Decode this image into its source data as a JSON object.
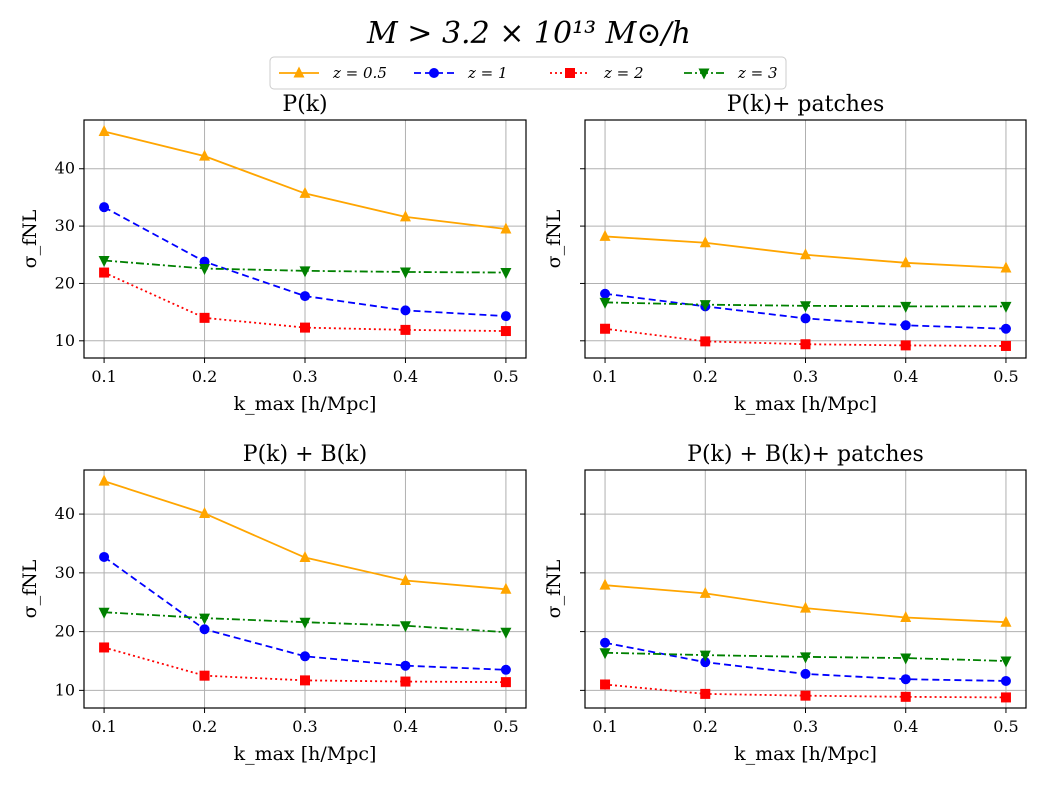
{
  "figure": {
    "title": "M > 3.2 × 10¹³ M⊙/h",
    "legend": [
      {
        "label": "z = 0.5",
        "color": "#ffa500",
        "marker": "triangle-up",
        "dash": "solid"
      },
      {
        "label": "z = 1",
        "color": "#0000ff",
        "marker": "circle",
        "dash": "dashed"
      },
      {
        "label": "z = 2",
        "color": "#ff0000",
        "marker": "square",
        "dash": "dotted"
      },
      {
        "label": "z = 3",
        "color": "#008000",
        "marker": "triangle-down",
        "dash": "dashdot"
      }
    ]
  },
  "chart_data": [
    {
      "type": "line",
      "title": "P(k)",
      "xlabel": "k_max [h/Mpc]",
      "ylabel": "σ_fNL",
      "x": [
        0.1,
        0.2,
        0.3,
        0.4,
        0.5
      ],
      "xticks": [
        "0.1",
        "0.2",
        "0.3",
        "0.4",
        "0.5"
      ],
      "yticks": [
        "10",
        "20",
        "30",
        "40"
      ],
      "ytick_values": [
        10,
        20,
        30,
        40
      ],
      "ytick_labels_visible": true,
      "ylim": [
        7,
        48.5
      ],
      "xlim": [
        0.08,
        0.52
      ],
      "grid": true,
      "series": [
        {
          "name": "z = 0.5",
          "values": [
            46.5,
            42.2,
            35.7,
            31.6,
            29.5
          ]
        },
        {
          "name": "z = 1",
          "values": [
            33.3,
            23.8,
            17.8,
            15.3,
            14.3
          ]
        },
        {
          "name": "z = 2",
          "values": [
            21.9,
            14.0,
            12.3,
            11.9,
            11.7
          ]
        },
        {
          "name": "z = 3",
          "values": [
            24.0,
            22.6,
            22.2,
            22.0,
            21.9
          ]
        }
      ]
    },
    {
      "type": "line",
      "title": "P(k)+ patches",
      "xlabel": "k_max [h/Mpc]",
      "ylabel": "σ_fNL",
      "x": [
        0.1,
        0.2,
        0.3,
        0.4,
        0.5
      ],
      "xticks": [
        "0.1",
        "0.2",
        "0.3",
        "0.4",
        "0.5"
      ],
      "yticks": [
        "10",
        "20",
        "30",
        "40"
      ],
      "ytick_values": [
        10,
        20,
        30,
        40
      ],
      "ytick_labels_visible": false,
      "ylim": [
        7,
        48.5
      ],
      "xlim": [
        0.08,
        0.52
      ],
      "grid": true,
      "series": [
        {
          "name": "z = 0.5",
          "values": [
            28.2,
            27.1,
            25.0,
            23.6,
            22.7
          ]
        },
        {
          "name": "z = 1",
          "values": [
            18.2,
            16.0,
            13.9,
            12.7,
            12.1
          ]
        },
        {
          "name": "z = 2",
          "values": [
            12.1,
            9.9,
            9.4,
            9.2,
            9.1
          ]
        },
        {
          "name": "z = 3",
          "values": [
            16.7,
            16.3,
            16.1,
            16.0,
            16.0
          ]
        }
      ]
    },
    {
      "type": "line",
      "title": "P(k) + B(k)",
      "xlabel": "k_max [h/Mpc]",
      "ylabel": "σ_fNL",
      "x": [
        0.1,
        0.2,
        0.3,
        0.4,
        0.5
      ],
      "xticks": [
        "0.1",
        "0.2",
        "0.3",
        "0.4",
        "0.5"
      ],
      "yticks": [
        "10",
        "20",
        "30",
        "40"
      ],
      "ytick_values": [
        10,
        20,
        30,
        40
      ],
      "ytick_labels_visible": true,
      "ylim": [
        7,
        47.5
      ],
      "xlim": [
        0.08,
        0.52
      ],
      "grid": true,
      "series": [
        {
          "name": "z = 0.5",
          "values": [
            45.6,
            40.1,
            32.6,
            28.7,
            27.2
          ]
        },
        {
          "name": "z = 1",
          "values": [
            32.7,
            20.4,
            15.8,
            14.2,
            13.5
          ]
        },
        {
          "name": "z = 2",
          "values": [
            17.3,
            12.5,
            11.7,
            11.5,
            11.4
          ]
        },
        {
          "name": "z = 3",
          "values": [
            23.3,
            22.3,
            21.6,
            21.0,
            19.9
          ]
        }
      ]
    },
    {
      "type": "line",
      "title": "P(k) + B(k)+ patches",
      "xlabel": "k_max [h/Mpc]",
      "ylabel": "σ_fNL",
      "x": [
        0.1,
        0.2,
        0.3,
        0.4,
        0.5
      ],
      "xticks": [
        "0.1",
        "0.2",
        "0.3",
        "0.4",
        "0.5"
      ],
      "yticks": [
        "10",
        "20",
        "30",
        "40"
      ],
      "ytick_values": [
        10,
        20,
        30,
        40
      ],
      "ytick_labels_visible": false,
      "ylim": [
        7,
        47.5
      ],
      "xlim": [
        0.08,
        0.52
      ],
      "grid": true,
      "series": [
        {
          "name": "z = 0.5",
          "values": [
            27.9,
            26.5,
            24.0,
            22.4,
            21.6
          ]
        },
        {
          "name": "z = 1",
          "values": [
            18.1,
            14.8,
            12.8,
            11.9,
            11.6
          ]
        },
        {
          "name": "z = 2",
          "values": [
            11.0,
            9.4,
            9.1,
            8.9,
            8.8
          ]
        },
        {
          "name": "z = 3",
          "values": [
            16.4,
            16.0,
            15.7,
            15.5,
            15.0
          ]
        }
      ]
    }
  ]
}
